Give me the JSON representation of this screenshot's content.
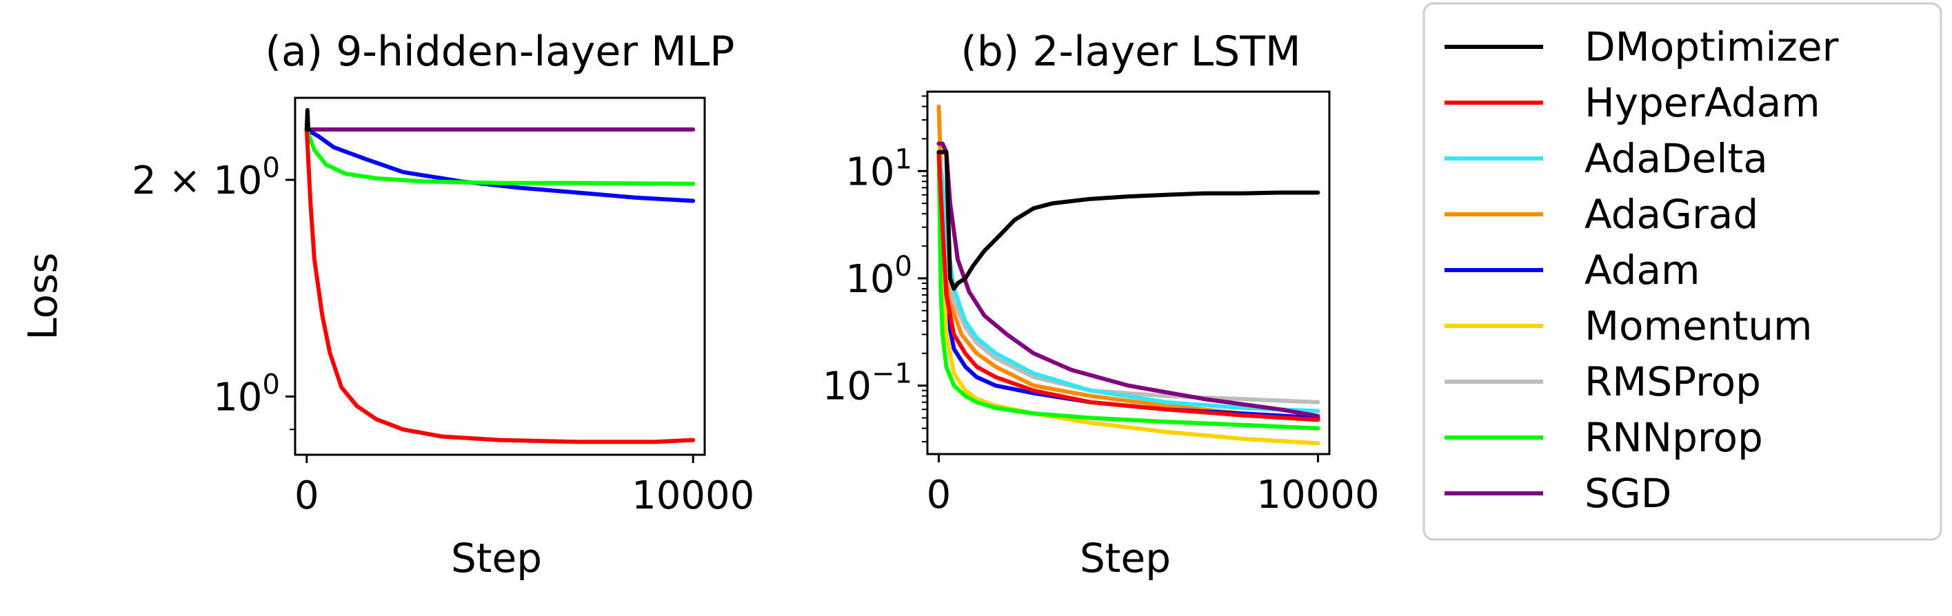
{
  "figure": {
    "ylabel": "Loss",
    "xlabel": "Step"
  },
  "legend": {
    "placement": "right",
    "entries": [
      {
        "label": "DMoptimizer",
        "color": "#000000"
      },
      {
        "label": "HyperAdam",
        "color": "#ff0000"
      },
      {
        "label": "AdaDelta",
        "color": "#33e6f2"
      },
      {
        "label": "AdaGrad",
        "color": "#ff8c00"
      },
      {
        "label": "Adam",
        "color": "#0000ff"
      },
      {
        "label": "Momentum",
        "color": "#ffd200"
      },
      {
        "label": "RMSProp",
        "color": "#bdbdbd"
      },
      {
        "label": "RNNprop",
        "color": "#00ff00"
      },
      {
        "label": "SGD",
        "color": "#800080"
      }
    ]
  },
  "chart_data": [
    {
      "type": "line",
      "title": "(a) 9-hidden-layer MLP",
      "xlabel": "Step",
      "ylabel": "Loss",
      "yscale": "log",
      "xlim": [
        -300,
        10300
      ],
      "ylim": [
        0.83,
        2.6
      ],
      "xticks": [
        {
          "value": 0,
          "label": "0"
        },
        {
          "value": 10000,
          "label": "10000"
        }
      ],
      "yticks": [
        {
          "value": 1.0,
          "label": "10",
          "exp": "0",
          "prefix": ""
        },
        {
          "value": 2.0,
          "label": "10",
          "exp": "0",
          "prefix": "2 × "
        }
      ],
      "series": [
        {
          "name": "SGD",
          "color": "#800080",
          "x": [
            0,
            2000,
            10000
          ],
          "y": [
            2.35,
            2.35,
            2.35
          ]
        },
        {
          "name": "Adam",
          "color": "#0000ff",
          "x": [
            0,
            300,
            700,
            1500,
            2500,
            4000,
            5500,
            7000,
            8500,
            10000
          ],
          "y": [
            2.35,
            2.3,
            2.22,
            2.14,
            2.05,
            1.99,
            1.95,
            1.92,
            1.89,
            1.87
          ]
        },
        {
          "name": "RNNprop",
          "color": "#00ff00",
          "x": [
            0,
            200,
            500,
            1000,
            1800,
            3000,
            5000,
            7000,
            10000
          ],
          "y": [
            2.35,
            2.2,
            2.1,
            2.04,
            2.01,
            1.99,
            1.98,
            1.98,
            1.975
          ]
        },
        {
          "name": "HyperAdam",
          "color": "#ff0000",
          "x": [
            0,
            100,
            200,
            400,
            600,
            900,
            1300,
            1800,
            2500,
            3500,
            5000,
            7000,
            9000,
            10000
          ],
          "y": [
            2.35,
            1.85,
            1.55,
            1.3,
            1.15,
            1.03,
            0.97,
            0.93,
            0.9,
            0.88,
            0.87,
            0.865,
            0.865,
            0.87
          ]
        },
        {
          "name": "DMoptimizer",
          "color": "#000000",
          "x": [
            0,
            20,
            40,
            60
          ],
          "y": [
            2.35,
            2.5,
            2.35,
            2.35
          ]
        }
      ]
    },
    {
      "type": "line",
      "title": "(b) 2-layer LSTM",
      "xlabel": "Step",
      "ylabel": "Loss",
      "yscale": "log",
      "xlim": [
        -300,
        10300
      ],
      "ylim": [
        0.023,
        55
      ],
      "xticks": [
        {
          "value": 0,
          "label": "0"
        },
        {
          "value": 10000,
          "label": "10000"
        }
      ],
      "yticks": [
        {
          "value": 0.1,
          "label": "10",
          "exp": "−1",
          "prefix": ""
        },
        {
          "value": 1,
          "label": "10",
          "exp": "0",
          "prefix": ""
        },
        {
          "value": 10,
          "label": "10",
          "exp": "1",
          "prefix": ""
        }
      ],
      "series": [
        {
          "name": "AdaGrad",
          "color": "#ff8c00",
          "x": [
            0,
            40,
            100,
            300,
            600,
            1000,
            1500,
            2500,
            4000,
            6000,
            8000,
            10000
          ],
          "y": [
            40,
            15,
            3.0,
            0.6,
            0.3,
            0.2,
            0.15,
            0.1,
            0.08,
            0.065,
            0.055,
            0.05
          ]
        },
        {
          "name": "RMSProp",
          "color": "#bdbdbd",
          "x": [
            0,
            100,
            200,
            400,
            700,
            1000,
            1500,
            2500,
            4000,
            6000,
            8000,
            10000
          ],
          "y": [
            15,
            5,
            1.5,
            0.6,
            0.35,
            0.25,
            0.18,
            0.12,
            0.09,
            0.08,
            0.075,
            0.07
          ]
        },
        {
          "name": "AdaDelta",
          "color": "#33e6f2",
          "x": [
            0,
            100,
            200,
            400,
            700,
            1000,
            1500,
            2500,
            4000,
            6000,
            8000,
            10000
          ],
          "y": [
            15,
            8,
            2.5,
            0.8,
            0.4,
            0.28,
            0.2,
            0.13,
            0.09,
            0.07,
            0.062,
            0.058
          ]
        },
        {
          "name": "Adam",
          "color": "#0000ff",
          "x": [
            0,
            100,
            200,
            400,
            700,
            1000,
            1500,
            2500,
            4000,
            6000,
            8000,
            10000
          ],
          "y": [
            15,
            2.0,
            0.5,
            0.22,
            0.15,
            0.12,
            0.1,
            0.085,
            0.07,
            0.06,
            0.055,
            0.05
          ]
        },
        {
          "name": "Momentum",
          "color": "#ffd200",
          "x": [
            0,
            100,
            200,
            400,
            700,
            1000,
            1500,
            2500,
            4000,
            6000,
            8000,
            10000
          ],
          "y": [
            15,
            1.5,
            0.3,
            0.13,
            0.09,
            0.075,
            0.065,
            0.055,
            0.045,
            0.037,
            0.032,
            0.029
          ]
        },
        {
          "name": "RNNprop",
          "color": "#00ff00",
          "x": [
            0,
            50,
            100,
            200,
            400,
            700,
            1000,
            1500,
            2500,
            4000,
            6000,
            8000,
            10000
          ],
          "y": [
            15,
            0.8,
            0.3,
            0.15,
            0.1,
            0.08,
            0.07,
            0.062,
            0.055,
            0.05,
            0.046,
            0.043,
            0.04
          ]
        },
        {
          "name": "HyperAdam",
          "color": "#ff0000",
          "x": [
            0,
            100,
            200,
            400,
            700,
            1000,
            1500,
            2500,
            4000,
            6000,
            8000,
            10000
          ],
          "y": [
            15,
            3.0,
            0.7,
            0.3,
            0.2,
            0.15,
            0.12,
            0.09,
            0.07,
            0.06,
            0.053,
            0.048
          ]
        },
        {
          "name": "SGD",
          "color": "#800080",
          "x": [
            0,
            100,
            200,
            300,
            500,
            800,
            1200,
            1800,
            2500,
            3500,
            5000,
            7000,
            9000,
            10000
          ],
          "y": [
            18,
            18,
            15,
            5.0,
            1.5,
            0.75,
            0.45,
            0.3,
            0.2,
            0.14,
            0.1,
            0.075,
            0.06,
            0.052
          ]
        },
        {
          "name": "DMoptimizer",
          "color": "#000000",
          "x": [
            0,
            200,
            300,
            400,
            500,
            700,
            900,
            1200,
            1600,
            2000,
            2500,
            3000,
            4000,
            5000,
            6000,
            7000,
            8000,
            9000,
            10000
          ],
          "y": [
            15,
            15,
            1.0,
            0.8,
            0.9,
            1.0,
            1.3,
            1.8,
            2.5,
            3.5,
            4.5,
            5.0,
            5.5,
            5.8,
            6.0,
            6.2,
            6.2,
            6.3,
            6.3
          ]
        }
      ]
    }
  ]
}
